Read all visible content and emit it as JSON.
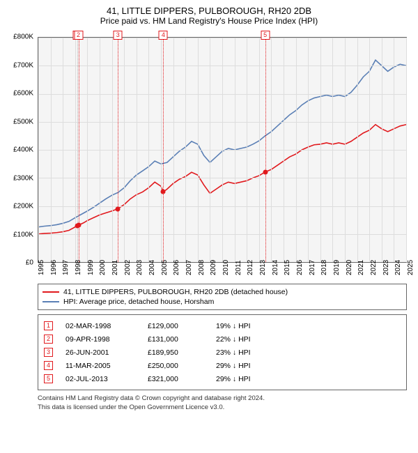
{
  "title": "41, LITTLE DIPPERS, PULBOROUGH, RH20 2DB",
  "subtitle": "Price paid vs. HM Land Registry's House Price Index (HPI)",
  "chart": {
    "type": "line",
    "background_color": "#f5f5f5",
    "grid_color": "#dddddd",
    "border_color": "#666666",
    "ylim": [
      0,
      800000
    ],
    "ytick_step": 100000,
    "yticks": [
      "£0",
      "£100K",
      "£200K",
      "£300K",
      "£400K",
      "£500K",
      "£600K",
      "£700K",
      "£800K"
    ],
    "xlim": [
      1995,
      2025
    ],
    "xticks": [
      1995,
      1996,
      1997,
      1998,
      1999,
      2000,
      2001,
      2002,
      2003,
      2004,
      2005,
      2006,
      2007,
      2008,
      2009,
      2010,
      2011,
      2012,
      2013,
      2014,
      2015,
      2016,
      2017,
      2018,
      2019,
      2020,
      2021,
      2022,
      2023,
      2024,
      2025
    ],
    "series": [
      {
        "name": "property",
        "label": "41, LITTLE DIPPERS, PULBOROUGH, RH20 2DB (detached house)",
        "color": "#e1191d",
        "line_width": 1.6,
        "points": [
          [
            1995,
            100000
          ],
          [
            1995.5,
            102000
          ],
          [
            1996,
            103000
          ],
          [
            1996.5,
            105000
          ],
          [
            1997,
            108000
          ],
          [
            1997.5,
            113000
          ],
          [
            1998.17,
            129000
          ],
          [
            1998.27,
            131000
          ],
          [
            1998.7,
            140000
          ],
          [
            1999,
            148000
          ],
          [
            1999.5,
            158000
          ],
          [
            2000,
            168000
          ],
          [
            2000.5,
            175000
          ],
          [
            2001,
            182000
          ],
          [
            2001.49,
            189950
          ],
          [
            2002,
            205000
          ],
          [
            2002.5,
            225000
          ],
          [
            2003,
            240000
          ],
          [
            2003.5,
            250000
          ],
          [
            2004,
            265000
          ],
          [
            2004.5,
            285000
          ],
          [
            2005,
            270000
          ],
          [
            2005.19,
            250000
          ],
          [
            2005.5,
            260000
          ],
          [
            2006,
            280000
          ],
          [
            2006.5,
            295000
          ],
          [
            2007,
            305000
          ],
          [
            2007.5,
            320000
          ],
          [
            2008,
            310000
          ],
          [
            2008.5,
            275000
          ],
          [
            2009,
            245000
          ],
          [
            2009.5,
            260000
          ],
          [
            2010,
            275000
          ],
          [
            2010.5,
            285000
          ],
          [
            2011,
            280000
          ],
          [
            2011.5,
            285000
          ],
          [
            2012,
            290000
          ],
          [
            2012.5,
            300000
          ],
          [
            2013,
            308000
          ],
          [
            2013.5,
            321000
          ],
          [
            2014,
            330000
          ],
          [
            2014.5,
            345000
          ],
          [
            2015,
            360000
          ],
          [
            2015.5,
            375000
          ],
          [
            2016,
            385000
          ],
          [
            2016.5,
            400000
          ],
          [
            2017,
            410000
          ],
          [
            2017.5,
            418000
          ],
          [
            2018,
            420000
          ],
          [
            2018.5,
            425000
          ],
          [
            2019,
            420000
          ],
          [
            2019.5,
            425000
          ],
          [
            2020,
            420000
          ],
          [
            2020.5,
            430000
          ],
          [
            2021,
            445000
          ],
          [
            2021.5,
            460000
          ],
          [
            2022,
            470000
          ],
          [
            2022.5,
            490000
          ],
          [
            2023,
            475000
          ],
          [
            2023.5,
            465000
          ],
          [
            2024,
            475000
          ],
          [
            2024.5,
            485000
          ],
          [
            2025,
            490000
          ]
        ]
      },
      {
        "name": "hpi",
        "label": "HPI: Average price, detached house, Horsham",
        "color": "#5a7fb5",
        "line_width": 1.6,
        "points": [
          [
            1995,
            125000
          ],
          [
            1995.5,
            128000
          ],
          [
            1996,
            130000
          ],
          [
            1996.5,
            133000
          ],
          [
            1997,
            138000
          ],
          [
            1997.5,
            145000
          ],
          [
            1998,
            158000
          ],
          [
            1998.5,
            170000
          ],
          [
            1999,
            182000
          ],
          [
            1999.5,
            195000
          ],
          [
            2000,
            210000
          ],
          [
            2000.5,
            225000
          ],
          [
            2001,
            238000
          ],
          [
            2001.5,
            248000
          ],
          [
            2002,
            265000
          ],
          [
            2002.5,
            290000
          ],
          [
            2003,
            310000
          ],
          [
            2003.5,
            325000
          ],
          [
            2004,
            340000
          ],
          [
            2004.5,
            360000
          ],
          [
            2005,
            350000
          ],
          [
            2005.5,
            355000
          ],
          [
            2006,
            375000
          ],
          [
            2006.5,
            395000
          ],
          [
            2007,
            410000
          ],
          [
            2007.5,
            430000
          ],
          [
            2008,
            420000
          ],
          [
            2008.5,
            380000
          ],
          [
            2009,
            355000
          ],
          [
            2009.5,
            375000
          ],
          [
            2010,
            395000
          ],
          [
            2010.5,
            405000
          ],
          [
            2011,
            400000
          ],
          [
            2011.5,
            405000
          ],
          [
            2012,
            410000
          ],
          [
            2012.5,
            420000
          ],
          [
            2013,
            432000
          ],
          [
            2013.5,
            450000
          ],
          [
            2014,
            465000
          ],
          [
            2014.5,
            485000
          ],
          [
            2015,
            505000
          ],
          [
            2015.5,
            525000
          ],
          [
            2016,
            540000
          ],
          [
            2016.5,
            560000
          ],
          [
            2017,
            575000
          ],
          [
            2017.5,
            585000
          ],
          [
            2018,
            590000
          ],
          [
            2018.5,
            595000
          ],
          [
            2019,
            590000
          ],
          [
            2019.5,
            595000
          ],
          [
            2020,
            590000
          ],
          [
            2020.5,
            605000
          ],
          [
            2021,
            630000
          ],
          [
            2021.5,
            660000
          ],
          [
            2022,
            680000
          ],
          [
            2022.5,
            720000
          ],
          [
            2023,
            700000
          ],
          [
            2023.5,
            680000
          ],
          [
            2024,
            695000
          ],
          [
            2024.5,
            705000
          ],
          [
            2025,
            700000
          ]
        ]
      }
    ],
    "markers": [
      {
        "n": 1,
        "x": 1998.17,
        "y": 129000,
        "line_color": "#b8b8b8"
      },
      {
        "n": 2,
        "x": 1998.27,
        "y": 131000,
        "line_color": "#e1191d"
      },
      {
        "n": 3,
        "x": 2001.49,
        "y": 189950,
        "line_color": "#e1191d"
      },
      {
        "n": 4,
        "x": 2005.19,
        "y": 250000,
        "line_color": "#e1191d"
      },
      {
        "n": 5,
        "x": 2013.5,
        "y": 321000,
        "line_color": "#e1191d"
      }
    ]
  },
  "transactions": [
    {
      "n": "1",
      "date": "02-MAR-1998",
      "price": "£129,000",
      "diff": "19% ↓ HPI"
    },
    {
      "n": "2",
      "date": "09-APR-1998",
      "price": "£131,000",
      "diff": "22% ↓ HPI"
    },
    {
      "n": "3",
      "date": "26-JUN-2001",
      "price": "£189,950",
      "diff": "23% ↓ HPI"
    },
    {
      "n": "4",
      "date": "11-MAR-2005",
      "price": "£250,000",
      "diff": "29% ↓ HPI"
    },
    {
      "n": "5",
      "date": "02-JUL-2013",
      "price": "£321,000",
      "diff": "29% ↓ HPI"
    }
  ],
  "footer": {
    "line1": "Contains HM Land Registry data © Crown copyright and database right 2024.",
    "line2": "This data is licensed under the Open Government Licence v3.0."
  },
  "marker_box_color": "#e1191d",
  "label_fontsize": 10
}
